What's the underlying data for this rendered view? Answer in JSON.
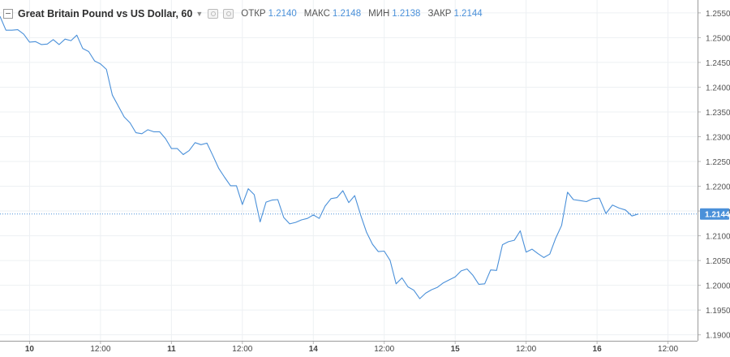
{
  "header": {
    "title": "Great Britain Pound vs US Dollar, 60",
    "ohlc": [
      {
        "label": "ОТКР",
        "value": "1.2140"
      },
      {
        "label": "МАКС",
        "value": "1.2148"
      },
      {
        "label": "МИН",
        "value": "1.2138"
      },
      {
        "label": "ЗАКР",
        "value": "1.2144"
      }
    ]
  },
  "chart_data": {
    "type": "line",
    "title": "Great Britain Pound vs US Dollar, 60",
    "series": [
      {
        "name": "",
        "color": "#4a90d9",
        "x": [
          0,
          1,
          2,
          3,
          4,
          5,
          6,
          7,
          8,
          9,
          10,
          11,
          12,
          13,
          14,
          15,
          16,
          17,
          18,
          19,
          20,
          21,
          22,
          23,
          24,
          25,
          26,
          27,
          28,
          29,
          30,
          31,
          32,
          33,
          34,
          35,
          36,
          37,
          38,
          39,
          40,
          41,
          42,
          43,
          44,
          45,
          46,
          47,
          48,
          49,
          50,
          51,
          52,
          53,
          54,
          55,
          56,
          57,
          58,
          59,
          60,
          61,
          62,
          63,
          64,
          65,
          66,
          67,
          68,
          69,
          70,
          71,
          72,
          73,
          74,
          75,
          76,
          77,
          78,
          79,
          80,
          81,
          82,
          83,
          84,
          85,
          86,
          87,
          88,
          89,
          90,
          91,
          92,
          93,
          94,
          95,
          96,
          97
        ],
        "values": [
          1.2543,
          1.2515,
          1.2515,
          1.2516,
          1.2507,
          1.2491,
          1.2492,
          1.2486,
          1.2487,
          1.2496,
          1.2486,
          1.2497,
          1.2494,
          1.2505,
          1.2478,
          1.2472,
          1.2453,
          1.2447,
          1.2436,
          1.2384,
          1.2362,
          1.234,
          1.2328,
          1.2308,
          1.2306,
          1.2314,
          1.231,
          1.231,
          1.2296,
          1.2276,
          1.2276,
          1.2264,
          1.2272,
          1.2288,
          1.2284,
          1.2287,
          1.2262,
          1.2236,
          1.2218,
          1.2201,
          1.2201,
          1.2163,
          1.2195,
          1.2183,
          1.2128,
          1.2168,
          1.2172,
          1.2173,
          1.2137,
          1.2124,
          1.2127,
          1.2132,
          1.2135,
          1.2142,
          1.2135,
          1.216,
          1.2175,
          1.2177,
          1.2191,
          1.2167,
          1.2181,
          1.2142,
          1.2107,
          1.2083,
          1.2068,
          1.2069,
          1.205,
          1.2003,
          1.2015,
          1.1997,
          1.199,
          1.1973,
          1.1984,
          1.1991,
          1.1996,
          1.2005,
          1.2011,
          1.2017,
          1.2029,
          1.2033,
          1.202,
          1.2002,
          1.2003,
          1.2031,
          1.203,
          1.2082,
          1.2088,
          1.2091,
          1.211,
          1.2067,
          1.2073,
          1.2064,
          1.2056,
          1.2063,
          1.2095,
          1.2121,
          1.2188,
          1.2173
        ]
      }
    ],
    "xticks": [
      {
        "label": "10",
        "x": 5,
        "bold": true
      },
      {
        "label": "12:00",
        "x": 17,
        "bold": false
      },
      {
        "label": "11",
        "x": 29,
        "bold": true
      },
      {
        "label": "12:00",
        "x": 41,
        "bold": false
      },
      {
        "label": "14",
        "x": 53,
        "bold": true
      },
      {
        "label": "12:00",
        "x": 65,
        "bold": false
      },
      {
        "label": "15",
        "x": 77,
        "bold": true
      },
      {
        "label": "12:00",
        "x": 89,
        "bold": false
      },
      {
        "label": "16",
        "x": 101,
        "bold": true
      },
      {
        "label": "12:00",
        "x": 113,
        "bold": false
      }
    ],
    "xlim": [
      0,
      118
    ],
    "yticks": [
      "1.2550",
      "1.2500",
      "1.2450",
      "1.2400",
      "1.2350",
      "1.2300",
      "1.2250",
      "1.2200",
      "1.2150",
      "1.2100",
      "1.2050",
      "1.2000",
      "1.1950",
      "1.1900"
    ],
    "ylim": [
      1.1888,
      1.2576
    ],
    "last_price": {
      "value": 1.2144,
      "label": "1.2144",
      "color": "#4a90d9"
    },
    "tail_values": [
      1.2171,
      1.2169,
      1.2175,
      1.2176,
      1.2145,
      1.2162,
      1.2156,
      1.2152,
      1.214,
      1.2144
    ],
    "grid": true,
    "xlabel": "",
    "ylabel": ""
  }
}
